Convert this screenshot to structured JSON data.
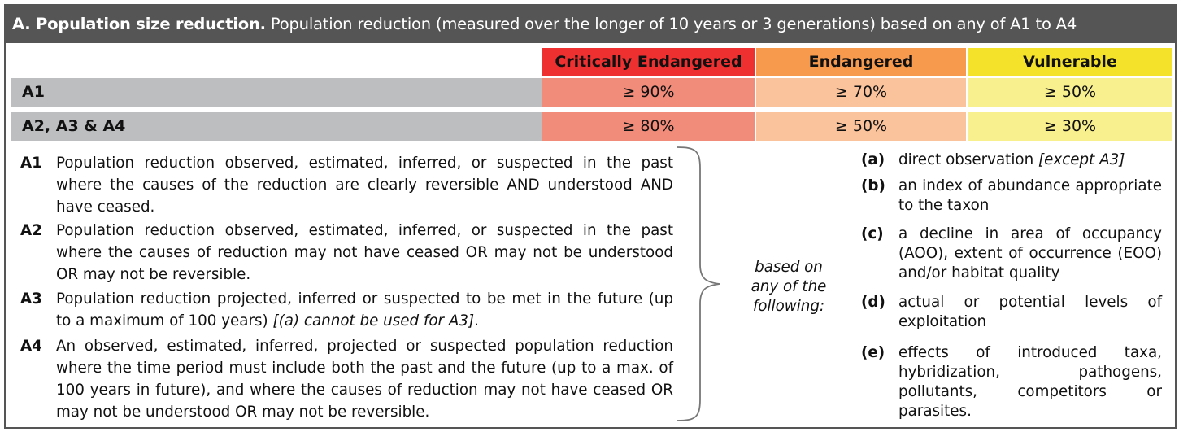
{
  "title": {
    "bold": "A. Population size reduction.",
    "text": " Population reduction (measured over the longer of 10 years or 3 generations) based on any of A1 to A4"
  },
  "headers": {
    "cr": "Critically Endangered",
    "en": "Endangered",
    "vu": "Vulnerable"
  },
  "rows": [
    {
      "label": "A1",
      "cr": "≥ 90%",
      "en": "≥ 70%",
      "vu": "≥ 50%"
    },
    {
      "label": "A2, A3 & A4",
      "cr": "≥ 80%",
      "en": "≥ 50%",
      "vu": "≥ 30%"
    }
  ],
  "definitions": [
    {
      "code": "A1",
      "text": "Population reduction observed, estimated, inferred, or suspected in the past where the causes of the reduction are clearly reversible AND understood AND have ceased."
    },
    {
      "code": "A2",
      "text": "Population reduction observed, estimated, inferred, or suspected in the past where the causes of reduction may not have ceased OR may not be understood OR may not be reversible."
    },
    {
      "code": "A3",
      "text": "Population reduction projected, inferred or suspected to be met in the future (up to a maximum of 100 years) ",
      "note": "[(a) cannot be used for A3]",
      "after": "."
    },
    {
      "code": "A4",
      "text": "An observed, estimated, inferred, projected or suspected population reduction where the time period must include both the past and the future (up to a max. of 100 years in future), and where the causes of reduction may not have ceased OR may not be understood OR may not be reversible."
    }
  ],
  "based_on": {
    "line1": "based on",
    "line2": "any of the",
    "line3": "following:"
  },
  "factors": [
    {
      "code": "(a)",
      "text": "direct observation ",
      "note": "[except A3]"
    },
    {
      "code": "(b)",
      "text": "an index of abundance appropriate to the taxon"
    },
    {
      "code": "(c)",
      "text": "a decline in area of occupancy (AOO), extent of occurrence (EOO) and/or habitat quality"
    },
    {
      "code": "(d)",
      "text": "actual or potential levels of exploitation"
    },
    {
      "code": "(e)",
      "text": "effects of introduced taxa, hybridization, pathogens, pollutants, competitors or parasites."
    }
  ],
  "colors": {
    "title_bg": "#555555",
    "cr_header": "#ee3030",
    "en_header": "#f79a4e",
    "vu_header": "#f3e12a",
    "cr_cell": "#f18b7a",
    "en_cell": "#fbc39b",
    "vu_cell": "#f8ef8e",
    "row_label_bg": "#bdbec0"
  },
  "icons": {
    "brace": "right-curly-brace-icon"
  }
}
